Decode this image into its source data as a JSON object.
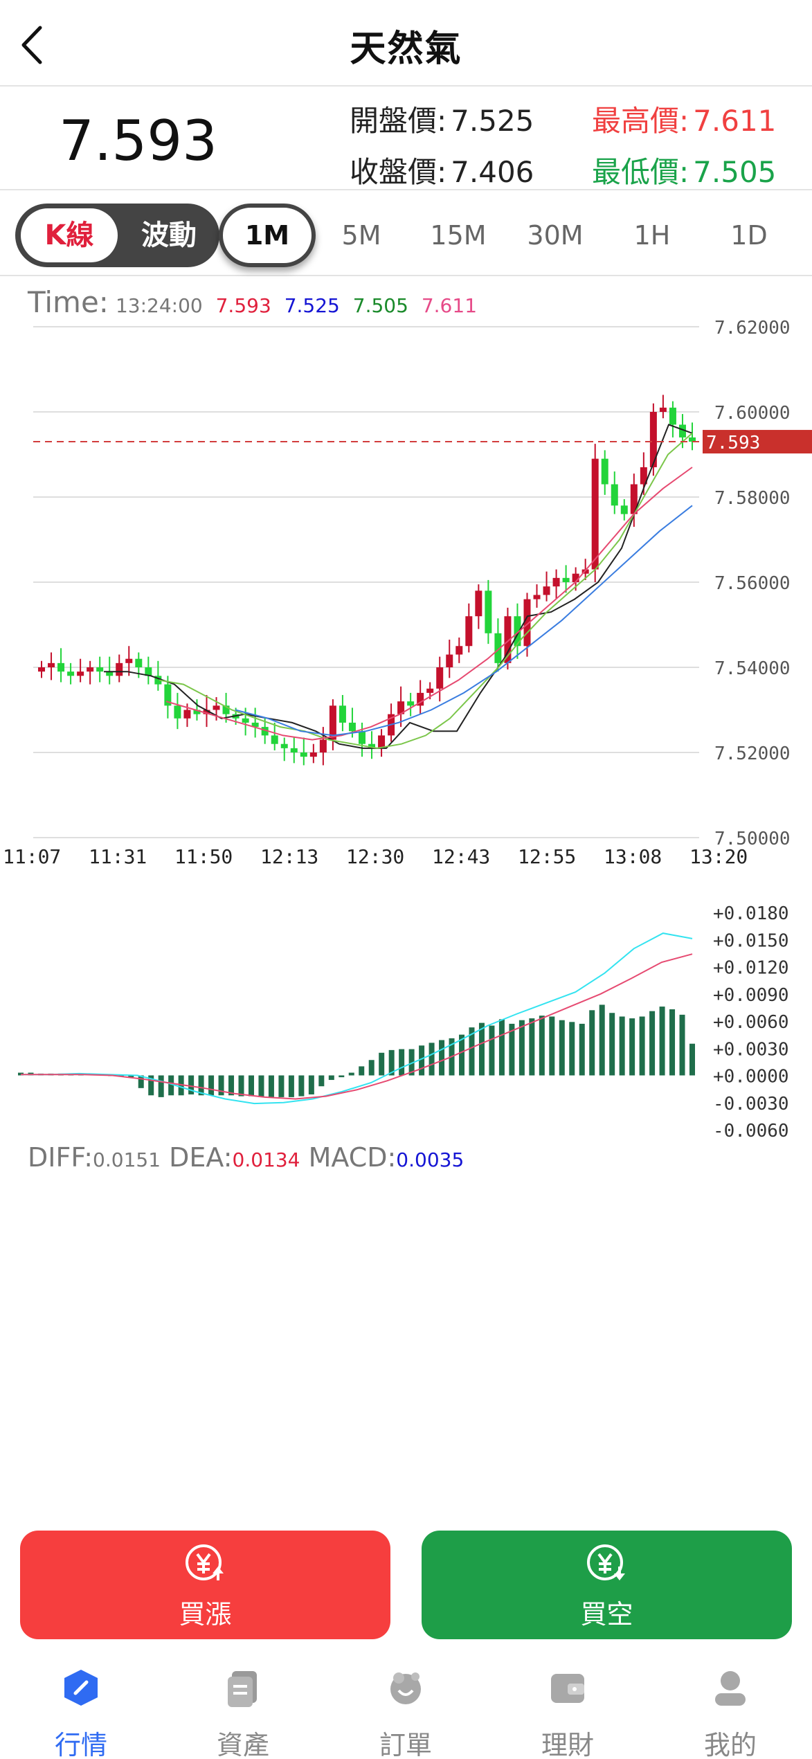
{
  "header": {
    "title": "天然氣",
    "back_icon": "chevron-left-icon"
  },
  "quote": {
    "last_price": "7.593",
    "open_label": "開盤價:",
    "open_value": "7.525",
    "close_label": "收盤價:",
    "close_value": "7.406",
    "high_label": "最高價:",
    "high_value": "7.611",
    "low_label": "最低價:",
    "low_value": "7.505",
    "colors": {
      "high": "#f04040",
      "low": "#1aa34a"
    }
  },
  "toolbar": {
    "mode_kline": "K線",
    "mode_wave": "波動",
    "timeframes": [
      "1M",
      "5M",
      "15M",
      "30M",
      "1H",
      "1D"
    ],
    "active_timeframe": "1M"
  },
  "legend": {
    "time_label": "Time:",
    "time_value": "13:24:00",
    "v1": "7.593",
    "v2": "7.525",
    "v3": "7.505",
    "v4": "7.611"
  },
  "macd_legend": {
    "diff_label": "DIFF:",
    "diff_value": "0.0151",
    "dea_label": "DEA:",
    "dea_value": "0.0134",
    "macd_label": "MACD:",
    "macd_value": "0.0035"
  },
  "chart_data": [
    {
      "type": "candlestick",
      "x_ticks": [
        "11:07",
        "11:31",
        "11:50",
        "12:13",
        "12:30",
        "12:43",
        "12:55",
        "13:08",
        "13:20"
      ],
      "y_ticks": [
        "7.62000",
        "7.60000",
        "7.58000",
        "7.56000",
        "7.54000",
        "7.52000",
        "7.50000"
      ],
      "ylim": [
        7.5,
        7.62
      ],
      "current_price_label": "7.593",
      "current_price": 7.593,
      "close_series": [
        7.54,
        7.541,
        7.539,
        7.538,
        7.539,
        7.54,
        7.539,
        7.538,
        7.541,
        7.542,
        7.54,
        7.538,
        7.536,
        7.531,
        7.528,
        7.53,
        7.529,
        7.53,
        7.531,
        7.529,
        7.528,
        7.527,
        7.526,
        7.524,
        7.522,
        7.521,
        7.52,
        7.519,
        7.52,
        7.523,
        7.531,
        7.527,
        7.525,
        7.522,
        7.521,
        7.524,
        7.529,
        7.532,
        7.531,
        7.534,
        7.535,
        7.54,
        7.543,
        7.545,
        7.552,
        7.558,
        7.548,
        7.541,
        7.552,
        7.545,
        7.556,
        7.557,
        7.559,
        7.561,
        7.56,
        7.562,
        7.563,
        7.589,
        7.583,
        7.578,
        7.576,
        7.583,
        7.587,
        7.6,
        7.601,
        7.597,
        7.594,
        7.593
      ],
      "ma_lines": [
        {
          "color": "#222222",
          "values": [
            7.539,
            7.539,
            7.538,
            7.536,
            7.531,
            7.528,
            7.529,
            7.528,
            7.527,
            7.525,
            7.522,
            7.521,
            7.521,
            7.527,
            7.525,
            7.525,
            7.534,
            7.542,
            7.552,
            7.553,
            7.556,
            7.56,
            7.568,
            7.583,
            7.597,
            7.595
          ]
        },
        {
          "color": "#7bc64a",
          "values": [
            7.537,
            7.536,
            7.533,
            7.53,
            7.528,
            7.526,
            7.525,
            7.523,
            7.522,
            7.521,
            7.522,
            7.524,
            7.528,
            7.534,
            7.54,
            7.547,
            7.553,
            7.558,
            7.563,
            7.57,
            7.58,
            7.59,
            7.595
          ]
        },
        {
          "color": "#e64a71",
          "values": [
            7.532,
            7.53,
            7.528,
            7.526,
            7.524,
            7.523,
            7.524,
            7.526,
            7.529,
            7.533,
            7.537,
            7.542,
            7.548,
            7.554,
            7.56,
            7.568,
            7.576,
            7.582,
            7.587
          ]
        },
        {
          "color": "#3a7de0",
          "values": [
            7.53,
            7.528,
            7.525,
            7.524,
            7.525,
            7.527,
            7.53,
            7.534,
            7.539,
            7.545,
            7.551,
            7.558,
            7.565,
            7.572,
            7.578
          ]
        }
      ]
    },
    {
      "type": "bar",
      "y_ticks": [
        "+0.0180",
        "+0.0150",
        "+0.0120",
        "+0.0090",
        "+0.0060",
        "+0.0030",
        "+0.0000",
        "-0.0030",
        "-0.0060"
      ],
      "ylim": [
        -0.006,
        0.018
      ],
      "macd_bars": [
        0.0003,
        0.0003,
        0.0002,
        0.0002,
        0.0002,
        0.0001,
        0.0001,
        0.0001,
        0.0001,
        0.0,
        0.0,
        -0.0002,
        -0.0014,
        -0.0022,
        -0.0024,
        -0.0022,
        -0.0022,
        -0.0021,
        -0.0022,
        -0.0022,
        -0.0022,
        -0.0022,
        -0.0023,
        -0.0023,
        -0.0024,
        -0.0024,
        -0.0024,
        -0.0024,
        -0.0023,
        -0.0021,
        -0.0012,
        -0.0005,
        -0.0002,
        0.0003,
        0.001,
        0.0017,
        0.0025,
        0.0028,
        0.0029,
        0.0029,
        0.0033,
        0.0036,
        0.0039,
        0.0041,
        0.0045,
        0.0053,
        0.0058,
        0.0055,
        0.0062,
        0.0057,
        0.0061,
        0.0063,
        0.0066,
        0.0065,
        0.0061,
        0.0059,
        0.0057,
        0.0072,
        0.0078,
        0.0069,
        0.0065,
        0.0063,
        0.0065,
        0.0071,
        0.0076,
        0.0073,
        0.0067,
        0.0035
      ],
      "diff_series": [
        0.0001,
        0.0001,
        0.0002,
        0.0001,
        0.0,
        -0.0008,
        -0.0018,
        -0.0026,
        -0.0031,
        -0.003,
        -0.0026,
        -0.0018,
        -0.0008,
        0.0008,
        0.0022,
        0.0038,
        0.0055,
        0.0068,
        0.008,
        0.0092,
        0.0113,
        0.014,
        0.0157,
        0.0151
      ],
      "dea_series": [
        0.0001,
        0.0001,
        0.0001,
        0.0,
        -0.0004,
        -0.0009,
        -0.0014,
        -0.002,
        -0.0024,
        -0.0026,
        -0.0023,
        -0.0016,
        -0.0006,
        0.0006,
        0.0019,
        0.0034,
        0.0048,
        0.0062,
        0.0076,
        0.009,
        0.0107,
        0.0125,
        0.0134
      ]
    }
  ],
  "buttons": {
    "buy_up": "買漲",
    "buy_down": "買空"
  },
  "tabs": [
    "行情",
    "資產",
    "訂單",
    "理財",
    "我的"
  ]
}
